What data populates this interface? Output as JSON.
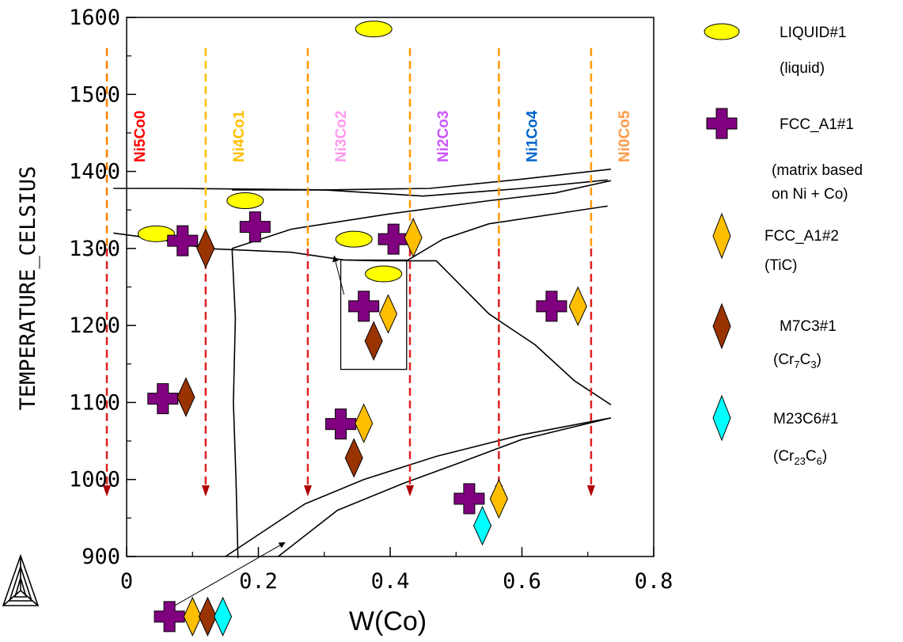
{
  "chart_data": {
    "type": "phase-diagram",
    "xlabel": "W(Co)",
    "ylabel": "TEMPERATURE_CELSIUS",
    "xlim": [
      0,
      0.8
    ],
    "ylim": [
      900,
      1600
    ],
    "x_ticks": [
      "0",
      "0.2",
      "0.4",
      "0.6",
      "0.8"
    ],
    "x_tick_values": [
      0,
      0.2,
      0.4,
      0.6,
      0.8
    ],
    "y_ticks": [
      "900",
      "1000",
      "1100",
      "1200",
      "1300",
      "1400",
      "1500",
      "1600"
    ],
    "y_tick_values": [
      900,
      1000,
      1100,
      1200,
      1300,
      1400,
      1500,
      1600
    ],
    "alloys": [
      {
        "label": "Ni5Co0",
        "x": -0.03,
        "color": "#ff0000",
        "arrow_color": "#ff7f00"
      },
      {
        "label": "Ni4Co1",
        "x": 0.12,
        "color": "#ffbf00",
        "arrow_color": "#ffbf00"
      },
      {
        "label": "Ni3Co2",
        "x": 0.275,
        "color": "#ff99ee",
        "arrow_color": "#ff9900"
      },
      {
        "label": "Ni2Co3",
        "x": 0.43,
        "color": "#cc55ff",
        "arrow_color": "#ff9900"
      },
      {
        "label": "Ni1Co4",
        "x": 0.565,
        "color": "#0066cc",
        "arrow_color": "#ff9900"
      },
      {
        "label": "Ni0Co5",
        "x": 0.705,
        "color": "#ff9944",
        "arrow_color": "#ff9900"
      }
    ],
    "arrow_range": [
      1560,
      980
    ],
    "boundary_lines": [
      [
        [
          -0.02,
          1378
        ],
        [
          0.08,
          1378
        ],
        [
          0.3,
          1376
        ],
        [
          0.46,
          1378
        ],
        [
          0.6,
          1390
        ],
        [
          0.735,
          1403
        ]
      ],
      [
        [
          0.16,
          1376
        ],
        [
          0.3,
          1376
        ],
        [
          0.45,
          1368
        ],
        [
          0.6,
          1378
        ],
        [
          0.73,
          1389
        ]
      ],
      [
        [
          0.16,
          1300
        ],
        [
          0.25,
          1325
        ],
        [
          0.4,
          1345
        ],
        [
          0.55,
          1362
        ],
        [
          0.65,
          1372
        ],
        [
          0.735,
          1388
        ]
      ],
      [
        [
          -0.02,
          1320
        ],
        [
          0.05,
          1312
        ],
        [
          0.12,
          1300
        ],
        [
          0.25,
          1295
        ],
        [
          0.33,
          1285
        ],
        [
          0.38,
          1284
        ],
        [
          0.47,
          1284
        ]
      ],
      [
        [
          0.425,
          1284
        ],
        [
          0.48,
          1312
        ],
        [
          0.55,
          1332
        ],
        [
          0.73,
          1355
        ]
      ],
      [
        [
          0.47,
          1284
        ],
        [
          0.55,
          1215
        ],
        [
          0.62,
          1175
        ],
        [
          0.68,
          1128
        ],
        [
          0.735,
          1097
        ]
      ],
      [
        [
          0.16,
          1300
        ],
        [
          0.165,
          1210
        ],
        [
          0.162,
          1100
        ],
        [
          0.166,
          1000
        ],
        [
          0.169,
          898
        ]
      ],
      [
        [
          0.15,
          900
        ],
        [
          0.27,
          968
        ],
        [
          0.36,
          1000
        ],
        [
          0.47,
          1030
        ],
        [
          0.6,
          1058
        ],
        [
          0.735,
          1080
        ]
      ],
      [
        [
          0.23,
          900
        ],
        [
          0.32,
          960
        ],
        [
          0.42,
          995
        ],
        [
          0.5,
          1020
        ],
        [
          0.6,
          1052
        ],
        [
          0.735,
          1080
        ]
      ]
    ],
    "phases": {
      "liquid": {
        "name": "LIQUID#1",
        "desc": "(liquid)",
        "color": "#ffff00",
        "shape": "ellipse"
      },
      "fcc1": {
        "name": "FCC_A1#1",
        "desc1": "(matrix based",
        "desc2": "on Ni + Co)",
        "color": "#800080",
        "shape": "cross"
      },
      "fcc2": {
        "name": "FCC_A1#2",
        "desc": "(TiC)",
        "color": "#ffbf00",
        "shape": "diamond"
      },
      "m7c3": {
        "name": "M7C3#1",
        "desc_main": "(Cr",
        "desc_sub1": "7",
        "desc_mid": "C",
        "desc_sub2": "3",
        "desc_end": ")",
        "color": "#993300",
        "shape": "diamond"
      },
      "m23c6": {
        "name": "M23C6#1",
        "desc_main": "(Cr",
        "desc_sub1": "23",
        "desc_mid": "C",
        "desc_sub2": "6",
        "desc_end": ")",
        "color": "#00ffff",
        "shape": "diamond"
      }
    },
    "phase_markers": [
      {
        "phase": "liquid",
        "x": 0.375,
        "y": 1585
      },
      {
        "phase": "liquid",
        "x": 0.045,
        "y": 1319
      },
      {
        "phase": "fcc1",
        "x": 0.085,
        "y": 1310
      },
      {
        "phase": "m7c3",
        "x": 0.12,
        "y": 1300
      },
      {
        "phase": "liquid",
        "x": 0.18,
        "y": 1362
      },
      {
        "phase": "fcc1",
        "x": 0.195,
        "y": 1328
      },
      {
        "phase": "liquid",
        "x": 0.345,
        "y": 1312
      },
      {
        "phase": "fcc1",
        "x": 0.405,
        "y": 1312
      },
      {
        "phase": "fcc2",
        "x": 0.435,
        "y": 1314
      },
      {
        "phase": "liquid",
        "x": 0.39,
        "y": 1267
      },
      {
        "phase": "fcc1",
        "x": 0.36,
        "y": 1225
      },
      {
        "phase": "fcc2",
        "x": 0.397,
        "y": 1215
      },
      {
        "phase": "m7c3",
        "x": 0.375,
        "y": 1180
      },
      {
        "phase": "fcc1",
        "x": 0.645,
        "y": 1225
      },
      {
        "phase": "fcc2",
        "x": 0.685,
        "y": 1225
      },
      {
        "phase": "fcc1",
        "x": 0.055,
        "y": 1105
      },
      {
        "phase": "m7c3",
        "x": 0.09,
        "y": 1107
      },
      {
        "phase": "fcc1",
        "x": 0.325,
        "y": 1072
      },
      {
        "phase": "fcc2",
        "x": 0.36,
        "y": 1073
      },
      {
        "phase": "m7c3",
        "x": 0.345,
        "y": 1028
      },
      {
        "phase": "fcc1",
        "x": 0.52,
        "y": 975
      },
      {
        "phase": "fcc2",
        "x": 0.565,
        "y": 975
      },
      {
        "phase": "m23c6",
        "x": 0.54,
        "y": 940
      }
    ],
    "inset_box": {
      "x0": 0.325,
      "x1": 0.425,
      "y0": 1285,
      "y1": 1143
    },
    "callout_arrows": [
      {
        "from": [
          0.33,
          1240
        ],
        "to": [
          0.315,
          1290
        ]
      },
      {
        "from": [
          0.05,
          825
        ],
        "to": [
          0.24,
          918
        ]
      }
    ],
    "outside_markers": [
      {
        "phase": "fcc1",
        "x": 0.065,
        "y": 822
      },
      {
        "phase": "fcc2",
        "x": 0.1,
        "y": 822
      },
      {
        "phase": "m7c3",
        "x": 0.123,
        "y": 822
      },
      {
        "phase": "m23c6",
        "x": 0.146,
        "y": 822
      }
    ]
  }
}
